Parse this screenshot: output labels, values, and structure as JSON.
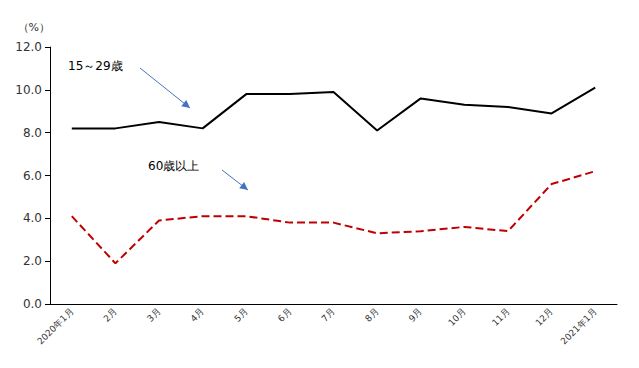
{
  "chart_data": {
    "type": "line",
    "y_label": "（%）",
    "categories": [
      "2020年1月",
      "2月",
      "3月",
      "4月",
      "5月",
      "6月",
      "7月",
      "8月",
      "9月",
      "10月",
      "11月",
      "12月",
      "2021年1月"
    ],
    "series": [
      {
        "name": "15～29歳",
        "color": "#000000",
        "line_style": "solid",
        "values": [
          8.2,
          8.2,
          8.5,
          8.2,
          9.8,
          9.8,
          9.9,
          8.1,
          9.6,
          9.3,
          9.2,
          8.9,
          10.1
        ]
      },
      {
        "name": "60歳以上",
        "color": "#c00000",
        "line_style": "dashed",
        "values": [
          4.1,
          1.9,
          3.9,
          4.1,
          4.1,
          3.8,
          3.8,
          3.3,
          3.4,
          3.6,
          3.4,
          5.6,
          6.2
        ]
      }
    ],
    "ylim": [
      0,
      12
    ],
    "yticks": [
      {
        "value": 0,
        "label": "0.0"
      },
      {
        "value": 2,
        "label": "2.0"
      },
      {
        "value": 4,
        "label": "4.0"
      },
      {
        "value": 6,
        "label": "6.0"
      },
      {
        "value": 8,
        "label": "8.0"
      },
      {
        "value": 10,
        "label": "10.0"
      },
      {
        "value": 12,
        "label": "12.0"
      }
    ],
    "grid": false
  }
}
